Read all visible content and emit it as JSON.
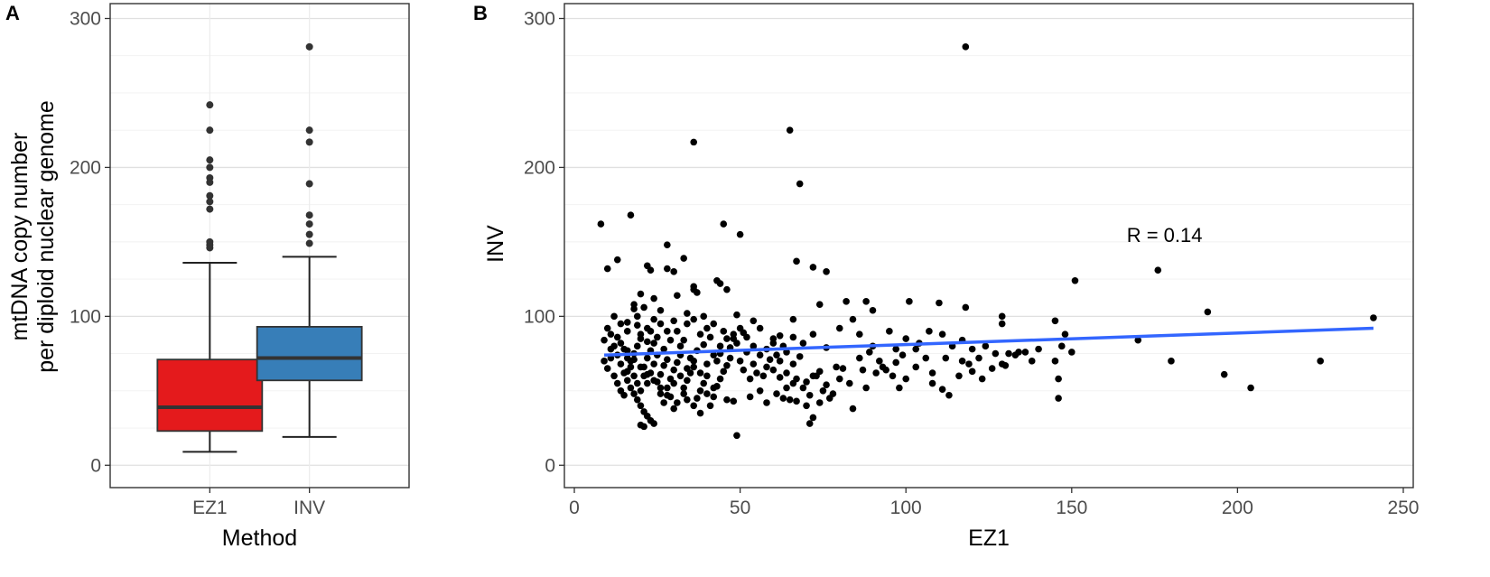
{
  "chart_data": [
    {
      "panel": "A",
      "type": "box",
      "xlabel": "Method",
      "ylabel_line1": "mtDNA copy number",
      "ylabel_line2": "per diploid nuclear genome",
      "ylim": [
        -15,
        310
      ],
      "y_ticks": [
        0,
        100,
        200,
        300
      ],
      "grid": true,
      "categories": [
        "EZ1",
        "INV"
      ],
      "boxes": [
        {
          "name": "EZ1",
          "color": "#e41a1c",
          "min": 9,
          "q1": 23,
          "median": 39,
          "q3": 71,
          "max": 136,
          "outliers": [
            146,
            148,
            150,
            172,
            177,
            181,
            190,
            193,
            200,
            205,
            225,
            242
          ]
        },
        {
          "name": "INV",
          "color": "#377eb8",
          "min": 19,
          "q1": 57,
          "median": 72,
          "q3": 93,
          "max": 140,
          "outliers": [
            149,
            155,
            162,
            168,
            189,
            217,
            225,
            281
          ]
        }
      ]
    },
    {
      "panel": "B",
      "type": "scatter",
      "xlabel": "EZ1",
      "ylabel": "INV",
      "xlim": [
        -3,
        253
      ],
      "ylim": [
        -15,
        310
      ],
      "x_ticks": [
        0,
        50,
        100,
        150,
        200,
        250
      ],
      "y_ticks": [
        0,
        100,
        200,
        300
      ],
      "grid": true,
      "annotation": "R = 0.14",
      "annotation_pos": [
        178,
        150
      ],
      "fit_line": {
        "color": "#3366ff",
        "x": [
          9,
          241
        ],
        "y": [
          74,
          92
        ]
      },
      "points": [
        [
          118,
          281
        ],
        [
          65,
          225
        ],
        [
          36,
          217
        ],
        [
          68,
          189
        ],
        [
          17,
          168
        ],
        [
          8,
          162
        ],
        [
          45,
          162
        ],
        [
          50,
          155
        ],
        [
          28,
          148
        ],
        [
          13,
          138
        ],
        [
          33,
          139
        ],
        [
          67,
          137
        ],
        [
          10,
          132
        ],
        [
          22,
          134
        ],
        [
          23,
          131
        ],
        [
          28,
          132
        ],
        [
          30,
          130
        ],
        [
          72,
          133
        ],
        [
          76,
          130
        ],
        [
          176,
          131
        ],
        [
          151,
          124
        ],
        [
          43,
          124
        ],
        [
          44,
          122
        ],
        [
          36,
          120
        ],
        [
          36,
          118
        ],
        [
          37,
          116
        ],
        [
          46,
          118
        ],
        [
          31,
          114
        ],
        [
          20,
          115
        ],
        [
          24,
          112
        ],
        [
          18,
          108
        ],
        [
          21,
          106
        ],
        [
          26,
          104
        ],
        [
          34,
          102
        ],
        [
          36,
          98
        ],
        [
          39,
          100
        ],
        [
          49,
          101
        ],
        [
          54,
          97
        ],
        [
          66,
          98
        ],
        [
          74,
          108
        ],
        [
          82,
          110
        ],
        [
          88,
          110
        ],
        [
          90,
          104
        ],
        [
          101,
          110
        ],
        [
          110,
          109
        ],
        [
          118,
          106
        ],
        [
          129,
          100
        ],
        [
          145,
          97
        ],
        [
          191,
          103
        ],
        [
          241,
          99
        ],
        [
          16,
          96
        ],
        [
          19,
          94
        ],
        [
          22,
          92
        ],
        [
          24,
          98
        ],
        [
          28,
          90
        ],
        [
          30,
          97
        ],
        [
          34,
          95
        ],
        [
          38,
          88
        ],
        [
          40,
          92
        ],
        [
          42,
          95
        ],
        [
          45,
          90
        ],
        [
          48,
          85
        ],
        [
          51,
          89
        ],
        [
          56,
          92
        ],
        [
          60,
          85
        ],
        [
          63,
          80
        ],
        [
          66,
          86
        ],
        [
          69,
          82
        ],
        [
          72,
          88
        ],
        [
          76,
          79
        ],
        [
          80,
          92
        ],
        [
          84,
          98
        ],
        [
          86,
          88
        ],
        [
          90,
          80
        ],
        [
          95,
          90
        ],
        [
          97,
          78
        ],
        [
          100,
          85
        ],
        [
          104,
          82
        ],
        [
          107,
          90
        ],
        [
          111,
          88
        ],
        [
          114,
          80
        ],
        [
          117,
          84
        ],
        [
          120,
          78
        ],
        [
          124,
          80
        ],
        [
          129,
          95
        ],
        [
          131,
          75
        ],
        [
          134,
          76
        ],
        [
          138,
          70
        ],
        [
          147,
          80
        ],
        [
          148,
          88
        ],
        [
          170,
          84
        ],
        [
          180,
          70
        ],
        [
          196,
          61
        ],
        [
          204,
          52
        ],
        [
          225,
          70
        ],
        [
          9,
          84
        ],
        [
          11,
          78
        ],
        [
          13,
          74
        ],
        [
          14,
          68
        ],
        [
          15,
          62
        ],
        [
          16,
          57
        ],
        [
          17,
          52
        ],
        [
          18,
          48
        ],
        [
          19,
          44
        ],
        [
          20,
          40
        ],
        [
          21,
          36
        ],
        [
          22,
          33
        ],
        [
          23,
          30
        ],
        [
          24,
          28
        ],
        [
          20,
          27
        ],
        [
          21,
          26
        ],
        [
          12,
          60
        ],
        [
          13,
          55
        ],
        [
          14,
          50
        ],
        [
          15,
          47
        ],
        [
          16,
          63
        ],
        [
          17,
          70
        ],
        [
          18,
          75
        ],
        [
          19,
          80
        ],
        [
          20,
          85
        ],
        [
          21,
          66
        ],
        [
          22,
          72
        ],
        [
          23,
          77
        ],
        [
          24,
          82
        ],
        [
          25,
          56
        ],
        [
          26,
          61
        ],
        [
          27,
          67
        ],
        [
          28,
          71
        ],
        [
          29,
          58
        ],
        [
          30,
          64
        ],
        [
          31,
          69
        ],
        [
          32,
          74
        ],
        [
          33,
          52
        ],
        [
          34,
          57
        ],
        [
          35,
          62
        ],
        [
          36,
          66
        ],
        [
          37,
          45
        ],
        [
          38,
          50
        ],
        [
          39,
          55
        ],
        [
          40,
          60
        ],
        [
          41,
          40
        ],
        [
          42,
          46
        ],
        [
          43,
          53
        ],
        [
          44,
          58
        ],
        [
          45,
          63
        ],
        [
          46,
          67
        ],
        [
          47,
          72
        ],
        [
          48,
          43
        ],
        [
          49,
          20
        ],
        [
          50,
          70
        ],
        [
          52,
          76
        ],
        [
          53,
          58
        ],
        [
          55,
          62
        ],
        [
          56,
          50
        ],
        [
          58,
          66
        ],
        [
          59,
          71
        ],
        [
          61,
          74
        ],
        [
          62,
          59
        ],
        [
          63,
          45
        ],
        [
          65,
          44
        ],
        [
          66,
          55
        ],
        [
          67,
          43
        ],
        [
          69,
          52
        ],
        [
          70,
          40
        ],
        [
          71,
          28
        ],
        [
          72,
          32
        ],
        [
          73,
          60
        ],
        [
          74,
          63
        ],
        [
          76,
          54
        ],
        [
          78,
          48
        ],
        [
          80,
          58
        ],
        [
          81,
          65
        ],
        [
          84,
          38
        ],
        [
          86,
          72
        ],
        [
          88,
          52
        ],
        [
          91,
          62
        ],
        [
          93,
          66
        ],
        [
          96,
          60
        ],
        [
          98,
          52
        ],
        [
          100,
          58
        ],
        [
          103,
          66
        ],
        [
          106,
          72
        ],
        [
          108,
          55
        ],
        [
          111,
          51
        ],
        [
          113,
          47
        ],
        [
          116,
          60
        ],
        [
          119,
          68
        ],
        [
          122,
          72
        ],
        [
          126,
          65
        ],
        [
          129,
          68
        ],
        [
          133,
          74
        ],
        [
          146,
          58
        ],
        [
          146,
          45
        ],
        [
          150,
          76
        ],
        [
          12,
          100
        ],
        [
          14,
          95
        ],
        [
          16,
          90
        ],
        [
          18,
          105
        ],
        [
          19,
          100
        ],
        [
          20,
          88
        ],
        [
          22,
          83
        ],
        [
          23,
          90
        ],
        [
          25,
          86
        ],
        [
          26,
          95
        ],
        [
          27,
          78
        ],
        [
          29,
          84
        ],
        [
          31,
          90
        ],
        [
          32,
          80
        ],
        [
          33,
          84
        ],
        [
          35,
          72
        ],
        [
          37,
          77
        ],
        [
          39,
          81
        ],
        [
          41,
          86
        ],
        [
          43,
          70
        ],
        [
          44,
          75
        ],
        [
          47,
          79
        ],
        [
          49,
          82
        ],
        [
          51,
          64
        ],
        [
          54,
          68
        ],
        [
          57,
          60
        ],
        [
          60,
          64
        ],
        [
          62,
          70
        ],
        [
          64,
          62
        ],
        [
          66,
          68
        ],
        [
          68,
          73
        ],
        [
          70,
          56
        ],
        [
          72,
          60
        ],
        [
          75,
          50
        ],
        [
          77,
          45
        ],
        [
          79,
          66
        ],
        [
          83,
          55
        ],
        [
          87,
          64
        ],
        [
          89,
          76
        ],
        [
          92,
          70
        ],
        [
          94,
          64
        ],
        [
          97,
          69
        ],
        [
          99,
          74
        ],
        [
          103,
          78
        ],
        [
          108,
          62
        ],
        [
          112,
          72
        ],
        [
          117,
          70
        ],
        [
          120,
          63
        ],
        [
          123,
          58
        ],
        [
          127,
          75
        ],
        [
          130,
          67
        ],
        [
          136,
          76
        ],
        [
          140,
          78
        ],
        [
          145,
          70
        ],
        [
          9,
          70
        ],
        [
          10,
          65
        ],
        [
          11,
          72
        ],
        [
          12,
          80
        ],
        [
          13,
          86
        ],
        [
          15,
          78
        ],
        [
          16,
          72
        ],
        [
          17,
          66
        ],
        [
          18,
          60
        ],
        [
          19,
          55
        ],
        [
          20,
          50
        ],
        [
          21,
          60
        ],
        [
          22,
          55
        ],
        [
          23,
          62
        ],
        [
          24,
          68
        ],
        [
          25,
          74
        ],
        [
          26,
          48
        ],
        [
          27,
          42
        ],
        [
          28,
          52
        ],
        [
          29,
          46
        ],
        [
          30,
          38
        ],
        [
          31,
          42
        ],
        [
          33,
          48
        ],
        [
          34,
          44
        ],
        [
          36,
          40
        ],
        [
          38,
          35
        ],
        [
          40,
          48
        ],
        [
          42,
          52
        ],
        [
          46,
          44
        ],
        [
          53,
          46
        ],
        [
          58,
          42
        ],
        [
          61,
          48
        ],
        [
          64,
          52
        ],
        [
          67,
          58
        ],
        [
          71,
          47
        ],
        [
          74,
          42
        ],
        [
          10,
          92
        ],
        [
          11,
          88
        ],
        [
          14,
          82
        ],
        [
          16,
          77
        ],
        [
          18,
          71
        ],
        [
          20,
          66
        ],
        [
          22,
          61
        ],
        [
          24,
          57
        ],
        [
          26,
          52
        ],
        [
          28,
          47
        ],
        [
          30,
          55
        ],
        [
          32,
          60
        ],
        [
          34,
          65
        ],
        [
          36,
          70
        ],
        [
          38,
          62
        ],
        [
          40,
          68
        ],
        [
          42,
          74
        ],
        [
          44,
          80
        ],
        [
          46,
          85
        ],
        [
          48,
          88
        ],
        [
          50,
          92
        ],
        [
          52,
          86
        ],
        [
          54,
          80
        ],
        [
          56,
          74
        ],
        [
          58,
          78
        ],
        [
          60,
          82
        ],
        [
          62,
          87
        ],
        [
          64,
          76
        ]
      ]
    }
  ]
}
